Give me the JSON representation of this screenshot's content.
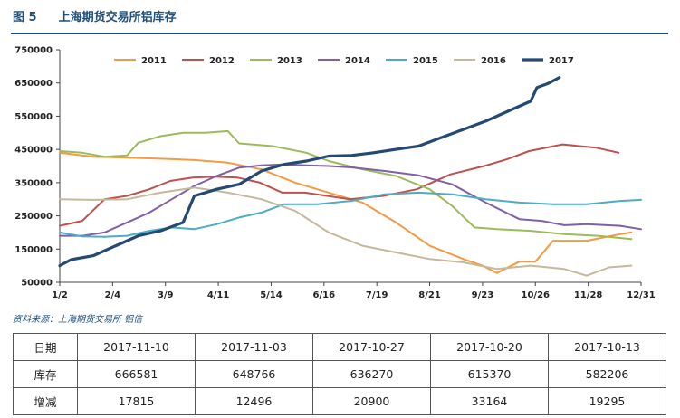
{
  "figure_label": "图 5",
  "figure_title": "上海期货交易所铝库存",
  "source_note": "资料来源：上海期货交易所   铝信",
  "chart_data": {
    "type": "line",
    "title": "",
    "xlabel": "",
    "ylabel": "",
    "ylim": [
      50000,
      750000
    ],
    "yticks": [
      50000,
      150000,
      250000,
      350000,
      450000,
      550000,
      650000,
      750000
    ],
    "ytick_labels": [
      "50000",
      "150000",
      "250000",
      "350000",
      "450000",
      "550000",
      "650000",
      "750000"
    ],
    "x_domain": [
      "1/2",
      "12/31"
    ],
    "xtick_labels": [
      "1/2",
      "2/4",
      "3/9",
      "4/11",
      "5/14",
      "6/16",
      "7/19",
      "8/21",
      "9/23",
      "10/26",
      "11/28",
      "12/31"
    ],
    "grid": false,
    "legend": "top",
    "series": [
      {
        "name": "2011",
        "color": "#f39a43",
        "x": [
          "1/2",
          "1/23",
          "2/13",
          "3/6",
          "3/27",
          "4/17",
          "5/8",
          "5/29",
          "6/19",
          "7/10",
          "7/31",
          "8/21",
          "9/11",
          "9/23",
          "10/2",
          "10/16",
          "10/26",
          "11/6",
          "11/27",
          "12/18",
          "12/25"
        ],
        "values": [
          440000,
          428000,
          425000,
          422000,
          418000,
          410000,
          390000,
          350000,
          320000,
          290000,
          230000,
          160000,
          120000,
          100000,
          78000,
          112000,
          112000,
          175000,
          175000,
          195000,
          200000
        ]
      },
      {
        "name": "2012",
        "color": "#c0504d",
        "x": [
          "1/2",
          "1/16",
          "1/30",
          "2/13",
          "2/27",
          "3/12",
          "3/26",
          "4/9",
          "4/23",
          "5/7",
          "5/21",
          "6/4",
          "6/18",
          "7/2",
          "7/23",
          "8/13",
          "9/3",
          "9/24",
          "10/8",
          "10/22",
          "11/12",
          "12/3",
          "12/17"
        ],
        "values": [
          220000,
          235000,
          300000,
          310000,
          330000,
          355000,
          365000,
          368000,
          365000,
          350000,
          320000,
          320000,
          310000,
          300000,
          310000,
          330000,
          375000,
          400000,
          420000,
          445000,
          465000,
          455000,
          440000
        ]
      },
      {
        "name": "2013",
        "color": "#9bbb59",
        "x": [
          "1/2",
          "1/16",
          "1/30",
          "2/13",
          "2/20",
          "3/6",
          "3/20",
          "4/3",
          "4/17",
          "4/24",
          "5/15",
          "6/5",
          "6/19",
          "7/10",
          "7/31",
          "8/21",
          "9/4",
          "9/18",
          "10/2",
          "10/23",
          "11/13",
          "12/4",
          "12/25"
        ],
        "values": [
          445000,
          440000,
          428000,
          432000,
          470000,
          490000,
          500000,
          500000,
          505000,
          468000,
          460000,
          440000,
          415000,
          390000,
          370000,
          330000,
          280000,
          215000,
          210000,
          205000,
          195000,
          190000,
          180000
        ]
      },
      {
        "name": "2014",
        "color": "#7f5fa6",
        "x": [
          "1/2",
          "1/16",
          "1/30",
          "2/13",
          "2/27",
          "3/13",
          "3/27",
          "4/10",
          "4/24",
          "5/8",
          "5/22",
          "6/5",
          "6/19",
          "7/3",
          "7/24",
          "8/14",
          "9/4",
          "9/25",
          "10/16",
          "10/30",
          "11/13",
          "11/27",
          "12/18",
          "12/31"
        ],
        "values": [
          190000,
          190000,
          200000,
          230000,
          260000,
          300000,
          340000,
          370000,
          395000,
          402000,
          405000,
          402000,
          400000,
          396000,
          385000,
          372000,
          345000,
          290000,
          240000,
          235000,
          222000,
          225000,
          220000,
          210000
        ]
      },
      {
        "name": "2015",
        "color": "#4bacc6",
        "x": [
          "1/2",
          "1/16",
          "1/30",
          "2/13",
          "2/27",
          "3/13",
          "3/27",
          "4/10",
          "4/24",
          "5/8",
          "5/22",
          "6/12",
          "7/3",
          "7/24",
          "8/14",
          "9/4",
          "9/25",
          "10/16",
          "11/6",
          "11/27",
          "12/18",
          "12/31"
        ],
        "values": [
          200000,
          188000,
          187000,
          190000,
          205000,
          215000,
          210000,
          225000,
          245000,
          260000,
          285000,
          285000,
          295000,
          315000,
          320000,
          315000,
          300000,
          290000,
          285000,
          285000,
          295000,
          298000
        ]
      },
      {
        "name": "2016",
        "color": "#c4b99a",
        "x": [
          "1/2",
          "1/23",
          "2/13",
          "3/6",
          "3/27",
          "4/17",
          "5/8",
          "5/29",
          "6/19",
          "7/10",
          "7/31",
          "8/21",
          "9/11",
          "10/2",
          "10/23",
          "11/13",
          "11/27",
          "12/11",
          "12/25"
        ],
        "values": [
          300000,
          298000,
          300000,
          320000,
          335000,
          320000,
          300000,
          265000,
          200000,
          160000,
          140000,
          120000,
          110000,
          90000,
          100000,
          90000,
          70000,
          95000,
          100000
        ]
      },
      {
        "name": "2017",
        "color": "#244a73",
        "x": [
          "1/2",
          "1/9",
          "1/23",
          "2/6",
          "2/20",
          "3/6",
          "3/20",
          "3/27",
          "4/10",
          "4/24",
          "5/8",
          "5/22",
          "6/5",
          "6/19",
          "7/3",
          "7/17",
          "7/31",
          "8/14",
          "8/28",
          "9/11",
          "9/25",
          "10/9",
          "10/23",
          "10/27",
          "11/3",
          "11/10"
        ],
        "values": [
          100000,
          118000,
          130000,
          160000,
          190000,
          205000,
          230000,
          310000,
          330000,
          345000,
          385000,
          405000,
          415000,
          430000,
          432000,
          440000,
          450000,
          460000,
          485000,
          510000,
          535000,
          565000,
          595000,
          636270,
          648766,
          666581
        ]
      }
    ]
  },
  "table": {
    "columns": [
      "日期",
      "2017-11-10",
      "2017-11-03",
      "2017-10-27",
      "2017-10-20",
      "2017-10-13"
    ],
    "rows": [
      [
        "库存",
        "666581",
        "648766",
        "636270",
        "615370",
        "582206"
      ],
      [
        "增减",
        "17815",
        "12496",
        "20900",
        "33164",
        "19295"
      ]
    ]
  }
}
